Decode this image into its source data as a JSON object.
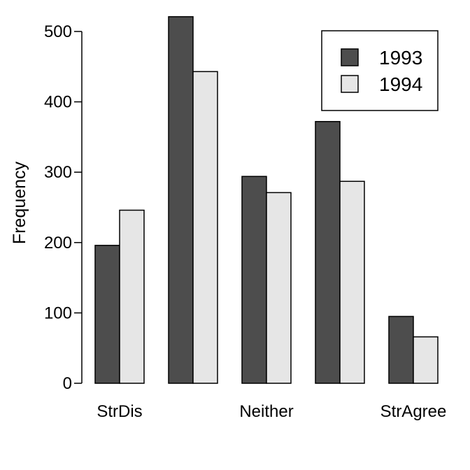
{
  "chart_data": {
    "type": "bar",
    "ylabel": "Frequency",
    "xlabel": "",
    "ylim": [
      0,
      500
    ],
    "yticks": [
      0,
      100,
      200,
      300,
      400,
      500
    ],
    "categories": [
      "StrDis",
      "",
      "Neither",
      "",
      "StrAgree"
    ],
    "series": [
      {
        "name": "1993",
        "color": "#4d4d4d",
        "values": [
          196,
          521,
          294,
          372,
          95
        ]
      },
      {
        "name": "1994",
        "color": "#e6e6e6",
        "values": [
          246,
          443,
          271,
          287,
          66
        ]
      }
    ],
    "legend_position": "top-right",
    "grid": false
  }
}
